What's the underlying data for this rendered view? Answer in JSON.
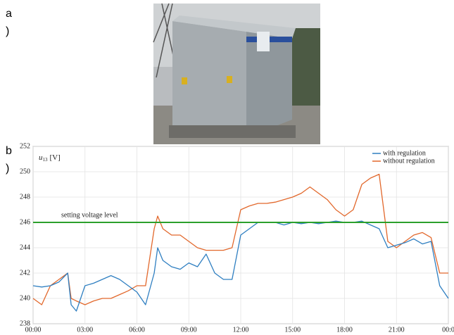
{
  "panels": [
    {
      "letter": "a",
      "paren": ")"
    },
    {
      "letter": "b",
      "paren": ")"
    }
  ],
  "chart_data": {
    "type": "line",
    "ylabel": {
      "var": "u",
      "sub": "13",
      "unit": "[V]"
    },
    "x": [
      0,
      0.5,
      1,
      1.5,
      2,
      2.2,
      2.5,
      3,
      3.5,
      4,
      4.5,
      5,
      5.5,
      6,
      6.5,
      7,
      7.2,
      7.5,
      8,
      8.5,
      9,
      9.5,
      10,
      10.5,
      11,
      11.5,
      12,
      12.5,
      13,
      13.5,
      14,
      14.5,
      15,
      15.5,
      16,
      16.5,
      17,
      17.5,
      18,
      18.5,
      19,
      19.5,
      20,
      20.5,
      21,
      21.5,
      22,
      22.5,
      23,
      23.5,
      24
    ],
    "series": [
      {
        "name": "with regulation",
        "color": "#2f7fc1",
        "values": [
          241.0,
          240.9,
          241.0,
          241.3,
          242.0,
          239.5,
          239.0,
          241.0,
          241.2,
          241.5,
          241.8,
          241.5,
          241.0,
          240.5,
          239.5,
          242.0,
          244.0,
          243.0,
          242.5,
          242.3,
          242.8,
          242.5,
          243.5,
          242.0,
          241.5,
          241.5,
          245.0,
          245.5,
          246.0,
          246.0,
          246.0,
          245.8,
          246.0,
          245.9,
          246.0,
          245.9,
          246.0,
          246.1,
          246.0,
          246.0,
          246.1,
          245.8,
          245.5,
          244.0,
          244.2,
          244.4,
          244.7,
          244.3,
          244.5,
          241.0,
          240.0
        ]
      },
      {
        "name": "without regulation",
        "color": "#e2682c",
        "values": [
          240.0,
          239.5,
          241.0,
          241.5,
          242.0,
          240.0,
          239.8,
          239.5,
          239.8,
          240.0,
          240.0,
          240.3,
          240.6,
          241.0,
          241.0,
          245.5,
          246.5,
          245.5,
          245.0,
          245.0,
          244.5,
          244.0,
          243.8,
          243.8,
          243.8,
          244.0,
          247.0,
          247.3,
          247.5,
          247.5,
          247.6,
          247.8,
          248.0,
          248.3,
          248.8,
          248.3,
          247.8,
          247.0,
          246.5,
          247.0,
          249.0,
          249.5,
          249.8,
          244.5,
          244.0,
          244.5,
          245.0,
          245.2,
          244.8,
          242.0,
          242.0
        ]
      }
    ],
    "reference": {
      "label": "setting voltage level",
      "value": 246,
      "color": "#2ca02c"
    },
    "xlim": [
      0,
      24
    ],
    "xticks": [
      {
        "value": 0,
        "label": "00:00"
      },
      {
        "value": 3,
        "label": "03:00"
      },
      {
        "value": 6,
        "label": "06:00"
      },
      {
        "value": 9,
        "label": "09:00"
      },
      {
        "value": 12,
        "label": "12:00"
      },
      {
        "value": 15,
        "label": "15:00"
      },
      {
        "value": 18,
        "label": "18:00"
      },
      {
        "value": 21,
        "label": "21:00"
      },
      {
        "value": 24,
        "label": "00:0"
      }
    ],
    "ylim": [
      238,
      252
    ],
    "yticks": [
      238,
      240,
      242,
      244,
      246,
      248,
      250,
      252
    ],
    "grid": true,
    "legend": "upper right"
  }
}
